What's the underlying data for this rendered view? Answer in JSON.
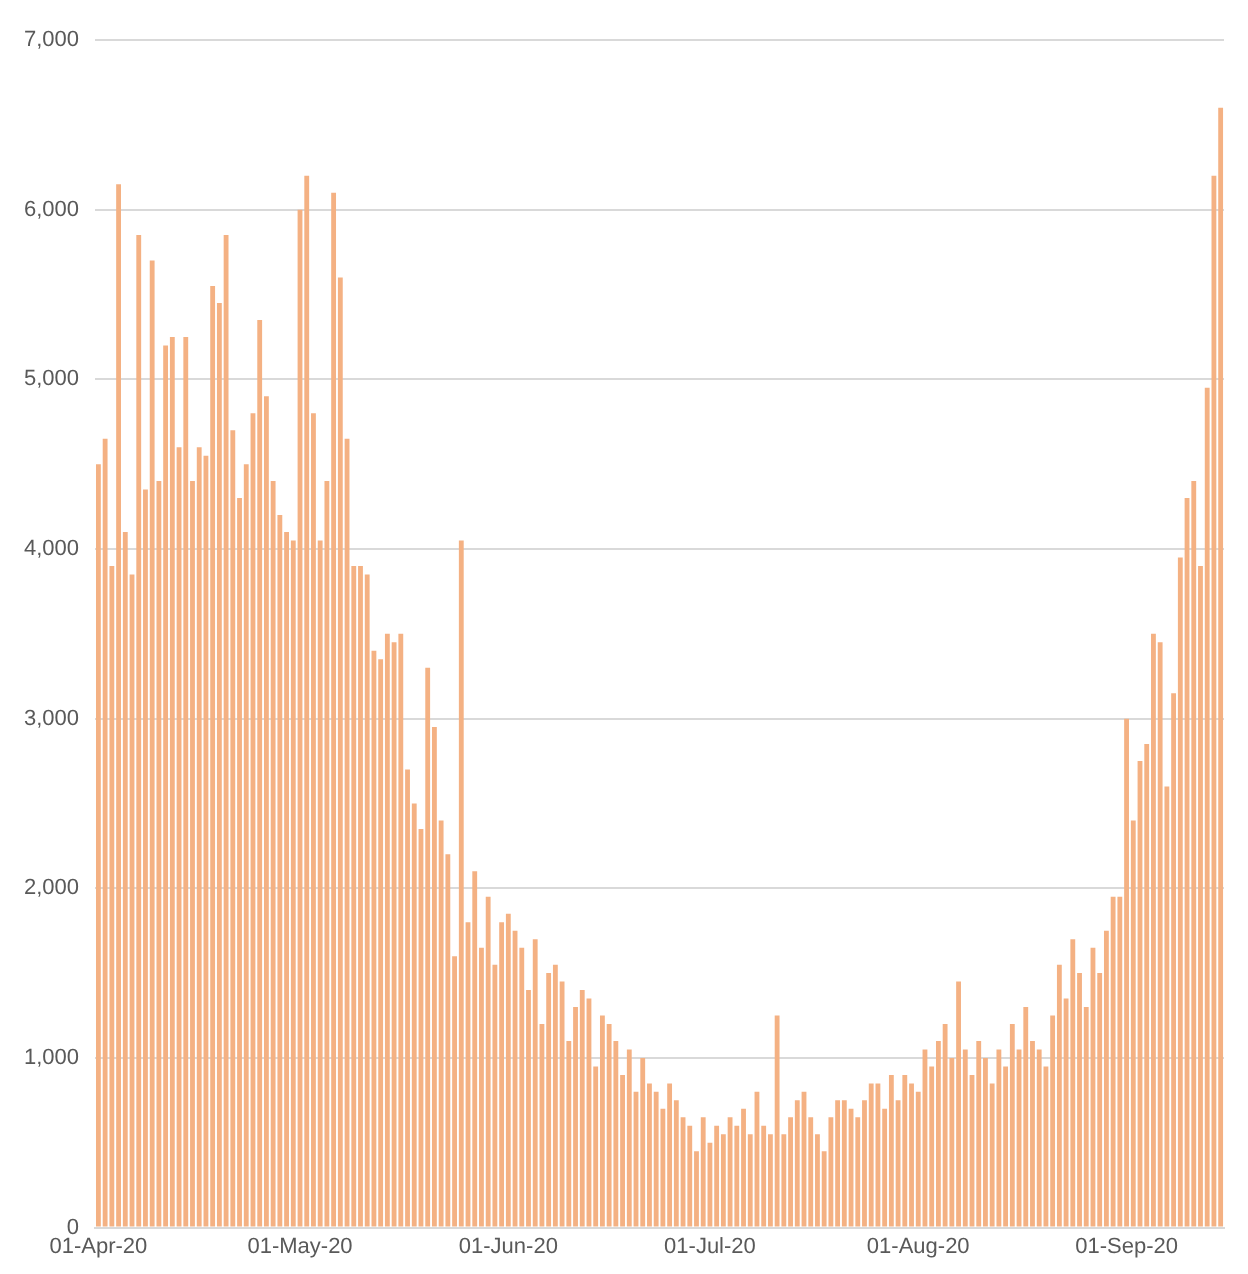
{
  "chart_data": {
    "type": "bar",
    "categories": [
      "01-Apr-20",
      null,
      null,
      null,
      null,
      null,
      null,
      null,
      null,
      null,
      null,
      null,
      null,
      null,
      null,
      null,
      null,
      null,
      null,
      null,
      null,
      null,
      null,
      null,
      null,
      null,
      null,
      null,
      null,
      null,
      "01-May-20",
      null,
      null,
      null,
      null,
      null,
      null,
      null,
      null,
      null,
      null,
      null,
      null,
      null,
      null,
      null,
      null,
      null,
      null,
      null,
      null,
      null,
      null,
      null,
      null,
      null,
      null,
      null,
      null,
      null,
      null,
      "01-Jun-20",
      null,
      null,
      null,
      null,
      null,
      null,
      null,
      null,
      null,
      null,
      null,
      null,
      null,
      null,
      null,
      null,
      null,
      null,
      null,
      null,
      null,
      null,
      null,
      null,
      null,
      null,
      null,
      null,
      null,
      "01-Jul-20",
      null,
      null,
      null,
      null,
      null,
      null,
      null,
      null,
      null,
      null,
      null,
      null,
      null,
      null,
      null,
      null,
      null,
      null,
      null,
      null,
      null,
      null,
      null,
      null,
      null,
      null,
      null,
      null,
      null,
      null,
      "01-Aug-20",
      null,
      null,
      null,
      null,
      null,
      null,
      null,
      null,
      null,
      null,
      null,
      null,
      null,
      null,
      null,
      null,
      null,
      null,
      null,
      null,
      null,
      null,
      null,
      null,
      null,
      null,
      null,
      null,
      null,
      null,
      "01-Sep-20",
      null,
      null,
      null,
      null,
      null,
      null,
      null,
      null,
      null,
      null,
      null,
      null,
      null,
      null
    ],
    "values": [
      4500,
      4650,
      3900,
      6150,
      4100,
      3850,
      5850,
      4350,
      5700,
      4400,
      5200,
      5250,
      4600,
      5250,
      4400,
      4600,
      4550,
      5550,
      5450,
      5850,
      4700,
      4300,
      4500,
      4800,
      5350,
      4900,
      4400,
      4200,
      4100,
      4050,
      6000,
      6200,
      4800,
      4050,
      4400,
      6100,
      5600,
      4650,
      3900,
      3900,
      3850,
      3400,
      3350,
      3500,
      3450,
      3500,
      2700,
      2500,
      2350,
      3300,
      2950,
      2400,
      2200,
      1600,
      4050,
      1800,
      2100,
      1650,
      1950,
      1550,
      1800,
      1850,
      1750,
      1650,
      1400,
      1700,
      1200,
      1500,
      1550,
      1450,
      1100,
      1300,
      1400,
      1350,
      950,
      1250,
      1200,
      1100,
      900,
      1050,
      800,
      1000,
      850,
      800,
      700,
      850,
      750,
      650,
      600,
      450,
      650,
      500,
      600,
      550,
      650,
      600,
      700,
      550,
      800,
      600,
      550,
      1250,
      550,
      650,
      750,
      800,
      650,
      550,
      450,
      650,
      750,
      750,
      700,
      650,
      750,
      850,
      850,
      700,
      900,
      750,
      900,
      850,
      800,
      1050,
      950,
      1100,
      1200,
      1000,
      1450,
      1050,
      900,
      1100,
      1000,
      850,
      1050,
      950,
      1200,
      1050,
      1300,
      1100,
      1050,
      950,
      1250,
      1550,
      1350,
      1700,
      1500,
      1300,
      1650,
      1500,
      1750,
      1950,
      1950,
      3000,
      2400,
      2750,
      2850,
      3500,
      3450,
      2600,
      3150,
      3950,
      4300,
      4400,
      3900,
      4950,
      6200,
      6600
    ],
    "color": "#f4b183",
    "ylim": [
      0,
      7000
    ],
    "yticks": [
      {
        "value": 0,
        "label": "0"
      },
      {
        "value": 1000,
        "label": "1,000"
      },
      {
        "value": 2000,
        "label": "2,000"
      },
      {
        "value": 3000,
        "label": "3,000"
      },
      {
        "value": 4000,
        "label": "4,000"
      },
      {
        "value": 5000,
        "label": "5,000"
      },
      {
        "value": 6000,
        "label": "6,000"
      },
      {
        "value": 7000,
        "label": "7,000"
      }
    ],
    "grid": "y"
  }
}
